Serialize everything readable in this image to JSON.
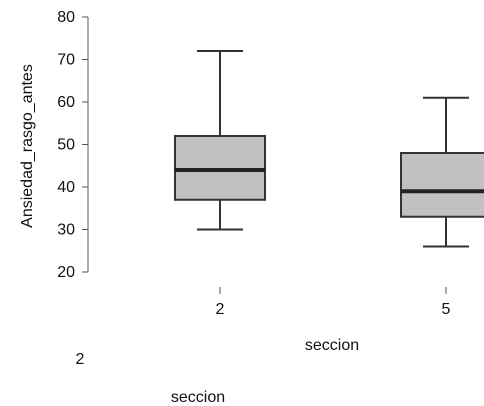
{
  "chart_data": {
    "type": "boxplot",
    "xlabel": "seccion",
    "ylabel": "Ansiedad_rasgo_antes",
    "xlabel_repeat": "seccion",
    "ylim": [
      20,
      80
    ],
    "yticks": [
      20,
      30,
      40,
      50,
      60,
      70,
      80
    ],
    "categories": [
      "2",
      "5"
    ],
    "series": [
      {
        "category": "2",
        "min": 30,
        "q1": 37,
        "median": 44,
        "q3": 52,
        "max": 72
      },
      {
        "category": "5",
        "min": 26,
        "q1": 33,
        "median": 39,
        "q3": 48,
        "max": 61
      }
    ],
    "grid": false,
    "box_fill": "#c0c0c0",
    "box_stroke": "#333333"
  }
}
